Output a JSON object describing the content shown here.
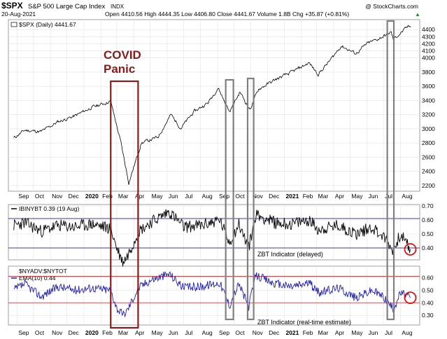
{
  "header": {
    "symbol": "$SPX",
    "name": "S&P 500 Large Cap Index",
    "exchange": "INDX",
    "copyright": "@ StockCharts.com",
    "date": "20-Aug-2021",
    "stats": "Open 4410.56  High 4444.35  Low 4406.80  Close 4441.67  Volume 1.8B  Chg +35.87 (+0.81%)",
    "stats_arrow": "▲"
  },
  "panels": {
    "price_legend": "$SPX (Daily) 4441.67",
    "ibiny_legend": "IBINYBT 0.39 (19 Aug)",
    "nyadv_legend": "$NYADV:$NYTOT",
    "ema_legend": "EMA(10) 0.44"
  },
  "annotations": {
    "covid_line1": "COVID",
    "covid_line2": "Panic",
    "zbt_delayed": "ZBT Indicator (delayed)",
    "zbt_realtime": "ZBT Indicator (real-time estimate)"
  },
  "colors": {
    "price": "#000000",
    "ibiny": "#000000",
    "ema": "#1f1fb4",
    "covid_box": "#8b1a1a",
    "gray_box": "#808080",
    "circle": "#dd1111",
    "upper_line": "#000080",
    "lower_line_ibiny": "#000080",
    "band_line": "#cc2222"
  },
  "chart_data": [
    {
      "type": "line",
      "title": "$SPX S&P 500 Large Cap Index INDX",
      "series": [
        {
          "name": "$SPX (Daily) 4441.67",
          "x": [
            "2019-08-26",
            "2019-09-15",
            "2019-10-15",
            "2019-11-15",
            "2019-12-15",
            "2020-01-15",
            "2020-02-19",
            "2020-03-09",
            "2020-03-23",
            "2020-04-15",
            "2020-05-15",
            "2020-06-08",
            "2020-06-26",
            "2020-07-20",
            "2020-08-15",
            "2020-09-02",
            "2020-09-23",
            "2020-10-12",
            "2020-10-30",
            "2020-11-15",
            "2020-12-15",
            "2021-01-15",
            "2021-02-15",
            "2021-03-04",
            "2021-03-25",
            "2021-04-15",
            "2021-05-12",
            "2021-06-01",
            "2021-06-25",
            "2021-07-15",
            "2021-07-19",
            "2021-08-15",
            "2021-08-20"
          ],
          "values": [
            2870,
            2980,
            2960,
            3100,
            3180,
            3300,
            3390,
            2790,
            2240,
            2800,
            2880,
            3200,
            3010,
            3240,
            3370,
            3580,
            3240,
            3520,
            3270,
            3560,
            3690,
            3800,
            3930,
            3770,
            3960,
            4170,
            4060,
            4200,
            4280,
            4360,
            4260,
            4440,
            4441.67
          ]
        }
      ],
      "ylim": [
        2150,
        4520
      ],
      "yticks": [
        2200,
        2400,
        2600,
        2800,
        3000,
        3200,
        3400,
        3600,
        3800,
        4000,
        4100,
        4200,
        4300,
        4400
      ]
    },
    {
      "type": "line",
      "series": [
        {
          "name": "IBINYBT 0.39 (19 Aug)",
          "x": [
            "2019-08-26",
            "2019-09-15",
            "2019-10-15",
            "2019-11-15",
            "2019-12-15",
            "2020-01-15",
            "2020-02-19",
            "2020-03-01",
            "2020-03-12",
            "2020-03-20",
            "2020-04-10",
            "2020-05-01",
            "2020-06-05",
            "2020-07-01",
            "2020-08-01",
            "2020-09-05",
            "2020-09-23",
            "2020-10-10",
            "2020-10-28",
            "2020-11-10",
            "2020-12-15",
            "2021-01-15",
            "2021-02-15",
            "2021-03-05",
            "2021-04-10",
            "2021-05-12",
            "2021-06-10",
            "2021-07-01",
            "2021-07-19",
            "2021-08-01",
            "2021-08-19"
          ],
          "values": [
            0.56,
            0.58,
            0.52,
            0.56,
            0.55,
            0.57,
            0.54,
            0.4,
            0.3,
            0.34,
            0.52,
            0.58,
            0.66,
            0.55,
            0.56,
            0.6,
            0.44,
            0.57,
            0.4,
            0.64,
            0.58,
            0.57,
            0.6,
            0.53,
            0.56,
            0.5,
            0.55,
            0.48,
            0.38,
            0.5,
            0.39
          ]
        }
      ],
      "ylim": [
        0.33,
        0.7
      ],
      "yticks": [
        0.4,
        0.5,
        0.6,
        0.7
      ],
      "reference_lines": [
        0.61,
        0.4
      ]
    },
    {
      "type": "line",
      "series": [
        {
          "name": "EMA(10) 0.44",
          "x": [
            "2019-08-26",
            "2019-09-15",
            "2019-10-15",
            "2019-11-15",
            "2019-12-15",
            "2020-01-15",
            "2020-02-19",
            "2020-03-01",
            "2020-03-12",
            "2020-03-20",
            "2020-04-10",
            "2020-05-01",
            "2020-06-05",
            "2020-07-01",
            "2020-08-01",
            "2020-09-05",
            "2020-09-23",
            "2020-10-10",
            "2020-10-28",
            "2020-11-10",
            "2020-12-15",
            "2021-01-15",
            "2021-02-15",
            "2021-03-05",
            "2021-04-10",
            "2021-05-12",
            "2021-06-10",
            "2021-07-01",
            "2021-07-19",
            "2021-08-01",
            "2021-08-19"
          ],
          "values": [
            0.5,
            0.55,
            0.45,
            0.53,
            0.5,
            0.52,
            0.5,
            0.36,
            0.3,
            0.34,
            0.52,
            0.58,
            0.63,
            0.52,
            0.53,
            0.56,
            0.38,
            0.55,
            0.37,
            0.62,
            0.55,
            0.53,
            0.56,
            0.48,
            0.52,
            0.44,
            0.5,
            0.45,
            0.35,
            0.48,
            0.44
          ]
        }
      ],
      "ylim": [
        0.24,
        0.68
      ],
      "yticks": [
        0.3,
        0.4,
        0.5,
        0.6
      ],
      "reference_lines": [
        0.61,
        0.4
      ]
    }
  ],
  "x_axis_labels": [
    "Sep",
    "Oct",
    "Nov",
    "Dec",
    "2020",
    "Feb",
    "Mar",
    "Apr",
    "May",
    "Jun",
    "Jul",
    "Aug",
    "Sep",
    "Oct",
    "Nov",
    "Dec",
    "2021",
    "Feb",
    "Mar",
    "Apr",
    "May",
    "Jun",
    "Jul",
    "Aug"
  ],
  "highlights": {
    "covid_box": {
      "from": "2020-02-19",
      "to": "2020-04-09"
    },
    "gray_boxes": [
      {
        "from": "2020-09-16",
        "to": "2020-09-30"
      },
      {
        "from": "2020-10-26",
        "to": "2020-11-06"
      },
      {
        "from": "2021-07-08",
        "to": "2021-07-20"
      }
    ],
    "circles_at": "2021-08-19"
  }
}
